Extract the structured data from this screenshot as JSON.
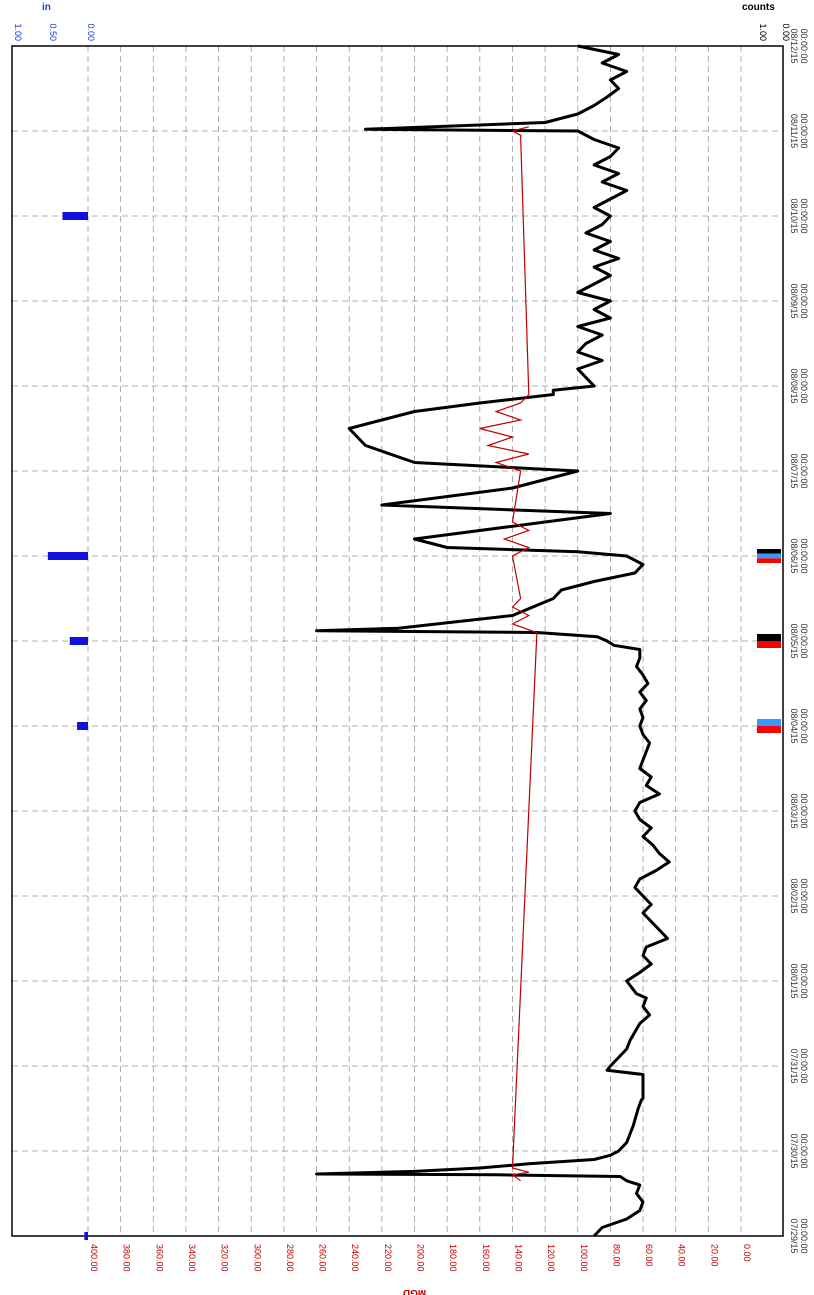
{
  "chart_data": {
    "type": "line",
    "orientation": "rotated-90-clockwise",
    "ylabel": "MGD",
    "yticks": [
      "400.00",
      "380.00",
      "360.00",
      "340.00",
      "320.00",
      "300.00",
      "280.00",
      "260.00",
      "240.00",
      "220.00",
      "200.00",
      "180.00",
      "160.00",
      "140.00",
      "120.00",
      "100.00",
      "80.00",
      "60.00",
      "40.00",
      "20.00",
      "0.00"
    ],
    "ylim": [
      0,
      400
    ],
    "xlabels": [
      [
        "07/29/15",
        "00:00:00"
      ],
      [
        "07/30/15",
        "00:00:00"
      ],
      [
        "07/31/15",
        "00:00:00"
      ],
      [
        "08/01/15",
        "00:00:00"
      ],
      [
        "08/02/15",
        "00:00:00"
      ],
      [
        "08/03/15",
        "00:00:00"
      ],
      [
        "08/04/15",
        "00:00:00"
      ],
      [
        "08/05/15",
        "00:00:00"
      ],
      [
        "08/06/15",
        "00:00:00"
      ],
      [
        "08/07/15",
        "00:00:00"
      ],
      [
        "08/08/15",
        "00:00:00"
      ],
      [
        "08/09/15",
        "00:00:00"
      ],
      [
        "08/10/15",
        "00:00:00"
      ],
      [
        "08/11/15",
        "00:00:00"
      ],
      [
        "08/12/15",
        "00:00:00"
      ]
    ],
    "xlim_days": [
      0,
      14
    ],
    "grid": true,
    "colors": {
      "flow": "#000000",
      "secondary": "#c00000",
      "rain": "#1111dd",
      "y_text": "#c00000",
      "in_text": "#1a3fd6"
    },
    "series": [
      {
        "name": "",
        "color": "#000000",
        "points": [
          [
            0,
            90
          ],
          [
            0.1,
            85
          ],
          [
            0.2,
            70
          ],
          [
            0.3,
            62
          ],
          [
            0.4,
            60
          ],
          [
            0.5,
            64
          ],
          [
            0.6,
            62
          ],
          [
            0.65,
            70
          ],
          [
            0.7,
            74
          ],
          [
            0.72,
            150
          ],
          [
            0.73,
            260
          ],
          [
            0.76,
            200
          ],
          [
            0.8,
            160
          ],
          [
            0.85,
            130
          ],
          [
            0.9,
            90
          ],
          [
            0.95,
            80
          ],
          [
            1.0,
            75
          ],
          [
            1.1,
            70
          ],
          [
            1.3,
            66
          ],
          [
            1.5,
            63
          ],
          [
            1.6,
            61
          ],
          [
            1.62,
            60
          ],
          [
            1.7,
            60
          ],
          [
            1.8,
            60
          ],
          [
            1.9,
            60
          ],
          [
            1.95,
            82
          ],
          [
            2.0,
            80
          ],
          [
            2.1,
            75
          ],
          [
            2.2,
            70
          ],
          [
            2.3,
            68
          ],
          [
            2.4,
            65
          ],
          [
            2.5,
            62
          ],
          [
            2.6,
            56
          ],
          [
            2.7,
            60
          ],
          [
            2.8,
            58
          ],
          [
            2.85,
            64
          ],
          [
            3.0,
            70
          ],
          [
            3.1,
            62
          ],
          [
            3.2,
            55
          ],
          [
            3.3,
            60
          ],
          [
            3.4,
            58
          ],
          [
            3.5,
            45
          ],
          [
            3.6,
            50
          ],
          [
            3.7,
            55
          ],
          [
            3.8,
            60
          ],
          [
            3.9,
            55
          ],
          [
            4.0,
            60
          ],
          [
            4.1,
            65
          ],
          [
            4.2,
            62
          ],
          [
            4.3,
            52
          ],
          [
            4.4,
            44
          ],
          [
            4.5,
            50
          ],
          [
            4.6,
            54
          ],
          [
            4.7,
            60
          ],
          [
            4.8,
            55
          ],
          [
            4.9,
            62
          ],
          [
            5.0,
            65
          ],
          [
            5.1,
            62
          ],
          [
            5.2,
            50
          ],
          [
            5.3,
            58
          ],
          [
            5.4,
            55
          ],
          [
            5.5,
            62
          ],
          [
            5.6,
            60
          ],
          [
            5.7,
            58
          ],
          [
            5.8,
            56
          ],
          [
            5.9,
            60
          ],
          [
            6.0,
            62
          ],
          [
            6.1,
            60
          ],
          [
            6.2,
            62
          ],
          [
            6.3,
            58
          ],
          [
            6.4,
            62
          ],
          [
            6.5,
            57
          ],
          [
            6.6,
            60
          ],
          [
            6.7,
            64
          ],
          [
            6.8,
            62
          ],
          [
            6.9,
            62
          ],
          [
            6.95,
            78
          ],
          [
            7.0,
            82
          ],
          [
            7.05,
            88
          ],
          [
            7.1,
            125
          ],
          [
            7.12,
            260
          ],
          [
            7.15,
            210
          ],
          [
            7.3,
            140
          ],
          [
            7.5,
            115
          ],
          [
            7.6,
            110
          ],
          [
            7.7,
            90
          ],
          [
            7.8,
            65
          ],
          [
            7.9,
            60
          ],
          [
            8.0,
            70
          ],
          [
            8.05,
            100
          ],
          [
            8.1,
            180
          ],
          [
            8.2,
            200
          ],
          [
            8.4,
            120
          ],
          [
            8.5,
            80
          ],
          [
            8.6,
            220
          ],
          [
            8.8,
            140
          ],
          [
            9.0,
            100
          ],
          [
            9.1,
            200
          ],
          [
            9.3,
            230
          ],
          [
            9.5,
            240
          ],
          [
            9.6,
            220
          ],
          [
            9.7,
            200
          ],
          [
            9.8,
            160
          ],
          [
            9.9,
            115
          ],
          [
            9.95,
            115
          ],
          [
            10.0,
            90
          ],
          [
            10.2,
            100
          ],
          [
            10.3,
            85
          ],
          [
            10.4,
            100
          ],
          [
            10.5,
            95
          ],
          [
            10.6,
            85
          ],
          [
            10.7,
            100
          ],
          [
            10.8,
            80
          ],
          [
            10.9,
            90
          ],
          [
            11.0,
            80
          ],
          [
            11.1,
            100
          ],
          [
            11.2,
            90
          ],
          [
            11.3,
            80
          ],
          [
            11.4,
            90
          ],
          [
            11.5,
            75
          ],
          [
            11.6,
            90
          ],
          [
            11.7,
            80
          ],
          [
            11.8,
            95
          ],
          [
            11.9,
            85
          ],
          [
            12.0,
            80
          ],
          [
            12.1,
            90
          ],
          [
            12.2,
            80
          ],
          [
            12.3,
            70
          ],
          [
            12.4,
            85
          ],
          [
            12.5,
            75
          ],
          [
            12.6,
            90
          ],
          [
            12.7,
            80
          ],
          [
            12.8,
            75
          ],
          [
            12.9,
            90
          ],
          [
            13.0,
            100
          ],
          [
            13.02,
            230
          ],
          [
            13.1,
            120
          ],
          [
            13.2,
            100
          ],
          [
            13.3,
            90
          ],
          [
            13.4,
            82
          ],
          [
            13.5,
            75
          ],
          [
            13.6,
            80
          ],
          [
            13.7,
            70
          ],
          [
            13.8,
            85
          ],
          [
            13.9,
            75
          ],
          [
            14.0,
            100
          ]
        ]
      },
      {
        "name": "",
        "color": "#c00000",
        "points": [
          [
            0.65,
            135
          ],
          [
            0.72,
            140
          ],
          [
            0.75,
            130
          ],
          [
            0.8,
            140
          ],
          [
            7.1,
            125
          ],
          [
            7.2,
            140
          ],
          [
            7.3,
            130
          ],
          [
            7.4,
            140
          ],
          [
            7.5,
            135
          ],
          [
            8.0,
            140
          ],
          [
            8.1,
            130
          ],
          [
            8.2,
            145
          ],
          [
            8.3,
            130
          ],
          [
            8.4,
            140
          ],
          [
            9.0,
            135
          ],
          [
            9.1,
            150
          ],
          [
            9.2,
            130
          ],
          [
            9.3,
            155
          ],
          [
            9.4,
            140
          ],
          [
            9.5,
            160
          ],
          [
            9.6,
            135
          ],
          [
            9.7,
            150
          ],
          [
            9.8,
            135
          ],
          [
            9.9,
            130
          ],
          [
            12.95,
            135
          ],
          [
            13.0,
            140
          ],
          [
            13.05,
            130
          ]
        ]
      }
    ]
  },
  "rain_axis": {
    "label": "in",
    "ticks": [
      "1.00",
      "0.50",
      "0.00"
    ],
    "bars": [
      {
        "day": 6.0,
        "value": 0.15
      },
      {
        "day": 7.0,
        "value": 0.25
      },
      {
        "day": 8.0,
        "value": 0.55
      },
      {
        "day": 12.0,
        "value": 0.35
      },
      {
        "day": 0.0,
        "value": 0.05
      }
    ]
  },
  "counts_axis": {
    "label": "counts",
    "ticks": [
      "1.00",
      "0.00"
    ],
    "markers": [
      {
        "day": 6.0,
        "colors": [
          "#3399ff",
          "#ff0000"
        ]
      },
      {
        "day": 7.0,
        "colors": [
          "#000000",
          "#ff0000"
        ]
      },
      {
        "day": 8.0,
        "colors": [
          "#000000",
          "#3399ff",
          "#ff0000"
        ]
      }
    ]
  }
}
